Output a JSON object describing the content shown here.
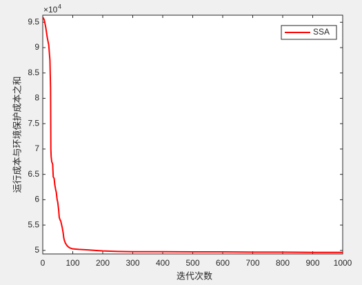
{
  "chart_data": {
    "type": "line",
    "x_label": "迭代次数",
    "y_label": "运行成本与环境保护成本之和",
    "y_multiplier": "×10",
    "y_multiplier_exponent": "4",
    "x": [
      0,
      5,
      10,
      15,
      20,
      24,
      26,
      27,
      28,
      30,
      33,
      35,
      38,
      40,
      43,
      45,
      48,
      50,
      53,
      55,
      58,
      60,
      63,
      65,
      68,
      70,
      72,
      75,
      78,
      80,
      85,
      90,
      95,
      100,
      120,
      150,
      200,
      250,
      300,
      400,
      500,
      600,
      700,
      800,
      900,
      1000
    ],
    "series": [
      {
        "name": "SSA",
        "color": "#ff0000",
        "values": [
          9.6,
          9.55,
          9.4,
          9.2,
          9.05,
          8.75,
          8.2,
          7.0,
          6.85,
          6.75,
          6.7,
          6.45,
          6.42,
          6.3,
          6.2,
          6.15,
          6.0,
          5.95,
          5.8,
          5.65,
          5.6,
          5.58,
          5.5,
          5.45,
          5.35,
          5.25,
          5.2,
          5.15,
          5.12,
          5.1,
          5.07,
          5.05,
          5.04,
          5.03,
          5.02,
          5.01,
          4.99,
          4.98,
          4.975,
          4.975,
          4.97,
          4.97,
          4.965,
          4.965,
          4.96,
          4.96
        ]
      }
    ],
    "xlim": [
      0,
      1000
    ],
    "xticks": [
      0,
      100,
      200,
      300,
      400,
      500,
      600,
      700,
      800,
      900,
      1000
    ],
    "ylim": [
      4.93,
      9.64
    ],
    "yticks": [
      5,
      5.5,
      6,
      6.5,
      7,
      7.5,
      8,
      8.5,
      9,
      9.5
    ],
    "grid": false,
    "legend": "top-right"
  }
}
